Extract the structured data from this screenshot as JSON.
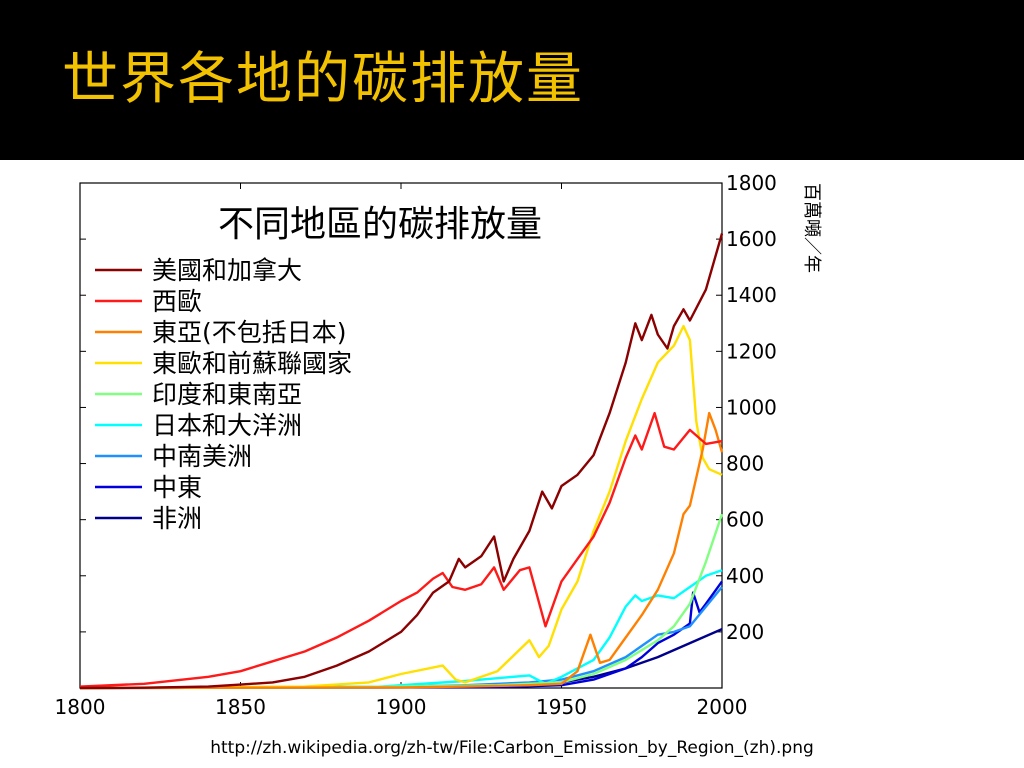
{
  "slide": {
    "title": "世界各地的碳排放量",
    "source": "http://zh.wikipedia.org/zh-tw/File:Carbon_Emission_by_Region_(zh).png"
  },
  "chart_data": {
    "type": "line",
    "title": "不同地區的碳排放量",
    "ylabel": "百萬噸／年",
    "xlim": [
      1800,
      2000
    ],
    "ylim": [
      0,
      1800
    ],
    "xticks": [
      1800,
      1850,
      1900,
      1950,
      2000
    ],
    "yticks": [
      200,
      400,
      600,
      800,
      1000,
      1200,
      1400,
      1600,
      1800
    ],
    "legend_position": "top-left",
    "series": [
      {
        "name": "美國和加拿大",
        "color": "#8b0000",
        "points": [
          [
            1800,
            0
          ],
          [
            1820,
            1
          ],
          [
            1840,
            5
          ],
          [
            1850,
            12
          ],
          [
            1860,
            20
          ],
          [
            1870,
            40
          ],
          [
            1880,
            80
          ],
          [
            1890,
            130
          ],
          [
            1900,
            200
          ],
          [
            1905,
            260
          ],
          [
            1910,
            340
          ],
          [
            1915,
            380
          ],
          [
            1918,
            460
          ],
          [
            1920,
            430
          ],
          [
            1925,
            470
          ],
          [
            1929,
            540
          ],
          [
            1932,
            380
          ],
          [
            1935,
            460
          ],
          [
            1940,
            560
          ],
          [
            1944,
            700
          ],
          [
            1947,
            640
          ],
          [
            1950,
            720
          ],
          [
            1955,
            760
          ],
          [
            1960,
            830
          ],
          [
            1965,
            980
          ],
          [
            1970,
            1160
          ],
          [
            1973,
            1300
          ],
          [
            1975,
            1240
          ],
          [
            1978,
            1330
          ],
          [
            1980,
            1260
          ],
          [
            1983,
            1210
          ],
          [
            1985,
            1290
          ],
          [
            1988,
            1350
          ],
          [
            1990,
            1310
          ],
          [
            1995,
            1420
          ],
          [
            2000,
            1620
          ]
        ]
      },
      {
        "name": "西歐",
        "color": "#ff1a1a",
        "points": [
          [
            1800,
            5
          ],
          [
            1820,
            15
          ],
          [
            1840,
            40
          ],
          [
            1850,
            60
          ],
          [
            1860,
            95
          ],
          [
            1870,
            130
          ],
          [
            1880,
            180
          ],
          [
            1890,
            240
          ],
          [
            1900,
            310
          ],
          [
            1905,
            340
          ],
          [
            1910,
            390
          ],
          [
            1913,
            410
          ],
          [
            1916,
            360
          ],
          [
            1920,
            350
          ],
          [
            1925,
            370
          ],
          [
            1929,
            430
          ],
          [
            1932,
            350
          ],
          [
            1937,
            420
          ],
          [
            1940,
            430
          ],
          [
            1945,
            220
          ],
          [
            1950,
            380
          ],
          [
            1955,
            460
          ],
          [
            1960,
            540
          ],
          [
            1965,
            660
          ],
          [
            1970,
            820
          ],
          [
            1973,
            900
          ],
          [
            1975,
            850
          ],
          [
            1979,
            980
          ],
          [
            1982,
            860
          ],
          [
            1985,
            850
          ],
          [
            1990,
            920
          ],
          [
            1995,
            870
          ],
          [
            2000,
            880
          ]
        ]
      },
      {
        "name": "東亞(不包括日本)",
        "color": "#ff8000",
        "points": [
          [
            1800,
            0
          ],
          [
            1900,
            2
          ],
          [
            1920,
            5
          ],
          [
            1940,
            10
          ],
          [
            1950,
            15
          ],
          [
            1955,
            60
          ],
          [
            1959,
            190
          ],
          [
            1962,
            90
          ],
          [
            1965,
            100
          ],
          [
            1970,
            180
          ],
          [
            1975,
            260
          ],
          [
            1980,
            350
          ],
          [
            1985,
            480
          ],
          [
            1988,
            620
          ],
          [
            1990,
            650
          ],
          [
            1994,
            850
          ],
          [
            1996,
            980
          ],
          [
            1998,
            920
          ],
          [
            2000,
            840
          ]
        ]
      },
      {
        "name": "東歐和前蘇聯國家",
        "color": "#ffe000",
        "points": [
          [
            1800,
            0
          ],
          [
            1870,
            5
          ],
          [
            1890,
            20
          ],
          [
            1900,
            50
          ],
          [
            1913,
            80
          ],
          [
            1917,
            30
          ],
          [
            1920,
            20
          ],
          [
            1930,
            60
          ],
          [
            1940,
            170
          ],
          [
            1943,
            110
          ],
          [
            1946,
            150
          ],
          [
            1950,
            280
          ],
          [
            1955,
            380
          ],
          [
            1960,
            560
          ],
          [
            1965,
            700
          ],
          [
            1970,
            880
          ],
          [
            1975,
            1030
          ],
          [
            1980,
            1160
          ],
          [
            1985,
            1220
          ],
          [
            1988,
            1290
          ],
          [
            1990,
            1240
          ],
          [
            1992,
            950
          ],
          [
            1994,
            820
          ],
          [
            1996,
            780
          ],
          [
            2000,
            760
          ]
        ]
      },
      {
        "name": "印度和東南亞",
        "color": "#80ff80",
        "points": [
          [
            1800,
            0
          ],
          [
            1900,
            5
          ],
          [
            1930,
            10
          ],
          [
            1950,
            20
          ],
          [
            1960,
            50
          ],
          [
            1970,
            100
          ],
          [
            1980,
            170
          ],
          [
            1985,
            220
          ],
          [
            1990,
            300
          ],
          [
            1995,
            450
          ],
          [
            2000,
            620
          ]
        ]
      },
      {
        "name": "日本和大洋洲",
        "color": "#00ffff",
        "points": [
          [
            1800,
            0
          ],
          [
            1890,
            2
          ],
          [
            1900,
            10
          ],
          [
            1920,
            25
          ],
          [
            1940,
            45
          ],
          [
            1945,
            15
          ],
          [
            1950,
            40
          ],
          [
            1960,
            100
          ],
          [
            1965,
            180
          ],
          [
            1970,
            290
          ],
          [
            1973,
            330
          ],
          [
            1975,
            310
          ],
          [
            1980,
            330
          ],
          [
            1985,
            320
          ],
          [
            1990,
            360
          ],
          [
            1995,
            400
          ],
          [
            2000,
            420
          ]
        ]
      },
      {
        "name": "中南美洲",
        "color": "#1e90ff",
        "points": [
          [
            1800,
            0
          ],
          [
            1900,
            5
          ],
          [
            1920,
            10
          ],
          [
            1940,
            20
          ],
          [
            1950,
            30
          ],
          [
            1960,
            60
          ],
          [
            1970,
            110
          ],
          [
            1980,
            190
          ],
          [
            1985,
            200
          ],
          [
            1990,
            220
          ],
          [
            1995,
            290
          ],
          [
            2000,
            360
          ]
        ]
      },
      {
        "name": "中東",
        "color": "#0000dd",
        "points": [
          [
            1800,
            0
          ],
          [
            1930,
            3
          ],
          [
            1950,
            10
          ],
          [
            1960,
            30
          ],
          [
            1970,
            70
          ],
          [
            1975,
            110
          ],
          [
            1980,
            160
          ],
          [
            1985,
            190
          ],
          [
            1990,
            230
          ],
          [
            1991,
            340
          ],
          [
            1993,
            270
          ],
          [
            1995,
            300
          ],
          [
            2000,
            380
          ]
        ]
      },
      {
        "name": "非洲",
        "color": "#00008b",
        "points": [
          [
            1800,
            0
          ],
          [
            1900,
            5
          ],
          [
            1930,
            10
          ],
          [
            1950,
            20
          ],
          [
            1960,
            40
          ],
          [
            1970,
            70
          ],
          [
            1980,
            110
          ],
          [
            1990,
            160
          ],
          [
            2000,
            210
          ]
        ]
      }
    ]
  }
}
